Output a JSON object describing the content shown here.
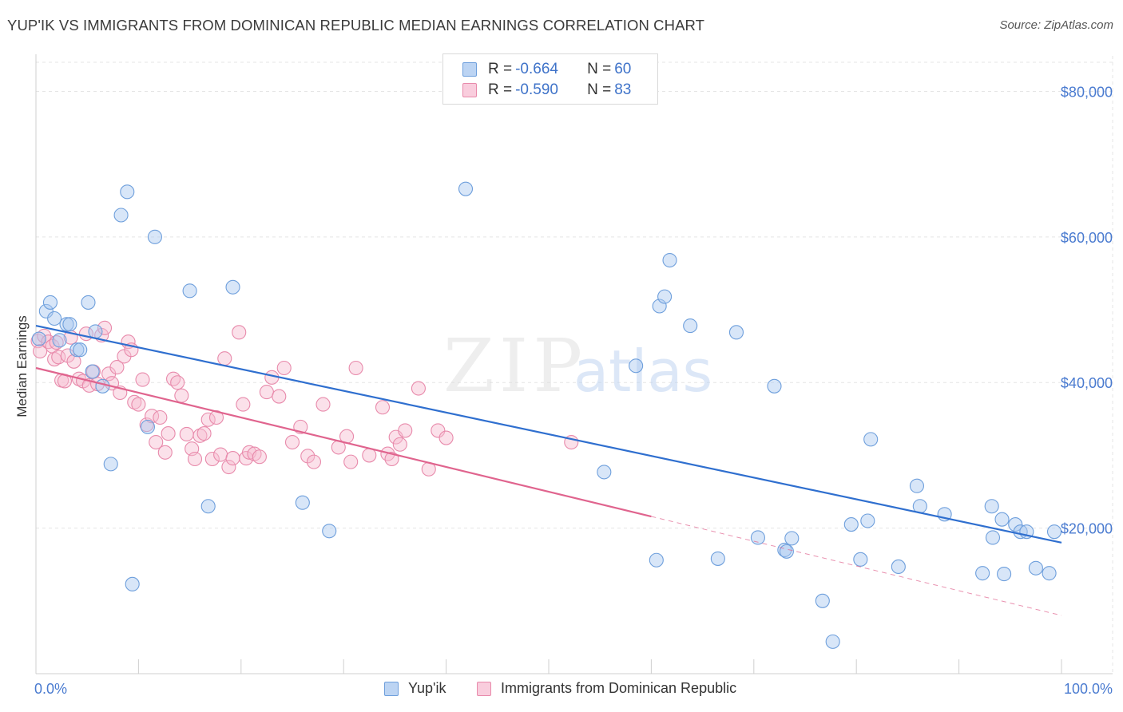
{
  "header": {
    "title": "YUP'IK VS IMMIGRANTS FROM DOMINICAN REPUBLIC MEDIAN EARNINGS CORRELATION CHART",
    "source": "Source: ZipAtlas.com"
  },
  "watermark": {
    "zip": "ZIP",
    "atlas": "atlas"
  },
  "legend": {
    "series1": {
      "r_label": "R = ",
      "r_value": "-0.664",
      "n_label": "N = ",
      "n_value": "60"
    },
    "series2": {
      "r_label": "R = ",
      "r_value": "-0.590",
      "n_label": "N = ",
      "n_value": "83"
    }
  },
  "colors": {
    "blue_fill": "#a9c8f0",
    "blue_stroke": "#6e9fdc",
    "blue_line": "#2f6fcf",
    "pink_fill": "#f7bcd0",
    "pink_stroke": "#e88aab",
    "pink_line": "#e0648e",
    "grid": "#e5e5e5",
    "tick_text": "#4a7bd0"
  },
  "chart_data": {
    "type": "scatter",
    "title": "YUP'IK VS IMMIGRANTS FROM DOMINICAN REPUBLIC MEDIAN EARNINGS CORRELATION CHART",
    "xlabel": "",
    "ylabel": "Median Earnings",
    "xlim": [
      0,
      100
    ],
    "ylim": [
      0,
      84000
    ],
    "x_tick_labels": [
      "0.0%",
      "100.0%"
    ],
    "y_ticks": [
      20000,
      40000,
      60000,
      80000
    ],
    "y_tick_labels": [
      "$20,000",
      "$40,000",
      "$60,000",
      "$80,000"
    ],
    "grid": true,
    "legend_position": "top-center",
    "series": [
      {
        "name": "Yup'ik",
        "r": -0.664,
        "n": 60,
        "trend": {
          "x": [
            0,
            100
          ],
          "y": [
            47800,
            18000
          ],
          "dashed_from": null
        },
        "points": [
          [
            0.3,
            46000
          ],
          [
            1.0,
            49800
          ],
          [
            1.4,
            51000
          ],
          [
            1.8,
            48800
          ],
          [
            2.3,
            45800
          ],
          [
            3.0,
            48000
          ],
          [
            3.3,
            48000
          ],
          [
            4.0,
            44500
          ],
          [
            4.3,
            44500
          ],
          [
            5.1,
            51000
          ],
          [
            5.5,
            41500
          ],
          [
            5.8,
            47000
          ],
          [
            6.5,
            39500
          ],
          [
            7.3,
            28800
          ],
          [
            8.3,
            63000
          ],
          [
            8.9,
            66200
          ],
          [
            9.4,
            12300
          ],
          [
            10.9,
            33900
          ],
          [
            11.6,
            60000
          ],
          [
            15.0,
            52600
          ],
          [
            16.8,
            23000
          ],
          [
            19.2,
            53100
          ],
          [
            26.0,
            23500
          ],
          [
            28.6,
            19600
          ],
          [
            41.9,
            66600
          ],
          [
            55.4,
            27700
          ],
          [
            58.5,
            42300
          ],
          [
            60.5,
            15600
          ],
          [
            60.8,
            50500
          ],
          [
            61.3,
            51800
          ],
          [
            61.8,
            56800
          ],
          [
            63.8,
            47800
          ],
          [
            66.5,
            15800
          ],
          [
            68.3,
            46900
          ],
          [
            70.4,
            18700
          ],
          [
            72.0,
            39500
          ],
          [
            73.0,
            17000
          ],
          [
            73.2,
            16800
          ],
          [
            73.7,
            18600
          ],
          [
            76.7,
            10000
          ],
          [
            77.7,
            4400
          ],
          [
            79.5,
            20500
          ],
          [
            80.4,
            15700
          ],
          [
            81.1,
            21000
          ],
          [
            81.4,
            32200
          ],
          [
            84.1,
            14700
          ],
          [
            85.9,
            25800
          ],
          [
            86.2,
            23000
          ],
          [
            88.6,
            21900
          ],
          [
            92.3,
            13800
          ],
          [
            93.2,
            23000
          ],
          [
            93.3,
            18700
          ],
          [
            94.2,
            21200
          ],
          [
            94.4,
            13700
          ],
          [
            95.5,
            20500
          ],
          [
            96.0,
            19500
          ],
          [
            96.6,
            19500
          ],
          [
            97.5,
            14500
          ],
          [
            98.8,
            13800
          ],
          [
            99.3,
            19500
          ]
        ]
      },
      {
        "name": "Immigrants from Dominican Republic",
        "r": -0.59,
        "n": 83,
        "trend": {
          "x": [
            0,
            100
          ],
          "y": [
            42000,
            8000
          ],
          "solid_until_x": 60
        },
        "points": [
          [
            0.2,
            45700
          ],
          [
            0.4,
            44300
          ],
          [
            0.8,
            46400
          ],
          [
            1.2,
            45600
          ],
          [
            1.6,
            45000
          ],
          [
            1.8,
            43200
          ],
          [
            2.0,
            45500
          ],
          [
            2.2,
            43500
          ],
          [
            2.5,
            40300
          ],
          [
            2.8,
            40200
          ],
          [
            3.1,
            43700
          ],
          [
            3.4,
            46200
          ],
          [
            3.7,
            42900
          ],
          [
            4.2,
            40500
          ],
          [
            4.6,
            40200
          ],
          [
            4.9,
            46700
          ],
          [
            5.2,
            39600
          ],
          [
            5.6,
            41500
          ],
          [
            6.0,
            39800
          ],
          [
            6.4,
            46500
          ],
          [
            6.7,
            47500
          ],
          [
            7.1,
            41200
          ],
          [
            7.4,
            39900
          ],
          [
            7.9,
            42100
          ],
          [
            8.2,
            38600
          ],
          [
            8.6,
            43600
          ],
          [
            9.0,
            45600
          ],
          [
            9.3,
            44500
          ],
          [
            9.6,
            37300
          ],
          [
            10.0,
            37000
          ],
          [
            10.4,
            40400
          ],
          [
            10.8,
            34200
          ],
          [
            11.3,
            35400
          ],
          [
            11.7,
            31800
          ],
          [
            12.1,
            35200
          ],
          [
            12.6,
            30400
          ],
          [
            12.9,
            33000
          ],
          [
            13.4,
            40500
          ],
          [
            13.8,
            40000
          ],
          [
            14.2,
            38200
          ],
          [
            14.7,
            32900
          ],
          [
            15.2,
            30900
          ],
          [
            15.5,
            29500
          ],
          [
            16.0,
            32700
          ],
          [
            16.4,
            33000
          ],
          [
            16.8,
            34900
          ],
          [
            17.2,
            29500
          ],
          [
            17.6,
            35200
          ],
          [
            18.0,
            30100
          ],
          [
            18.4,
            43300
          ],
          [
            18.8,
            28400
          ],
          [
            19.2,
            29600
          ],
          [
            19.8,
            46900
          ],
          [
            20.2,
            37000
          ],
          [
            20.5,
            29600
          ],
          [
            20.8,
            30400
          ],
          [
            21.3,
            30200
          ],
          [
            21.8,
            29800
          ],
          [
            22.5,
            38700
          ],
          [
            23.0,
            40700
          ],
          [
            23.7,
            38100
          ],
          [
            24.2,
            42000
          ],
          [
            25.0,
            31800
          ],
          [
            25.8,
            33900
          ],
          [
            26.5,
            29900
          ],
          [
            27.1,
            29100
          ],
          [
            28.0,
            37000
          ],
          [
            29.5,
            31100
          ],
          [
            30.3,
            32600
          ],
          [
            30.7,
            29100
          ],
          [
            31.2,
            42000
          ],
          [
            32.5,
            30000
          ],
          [
            33.8,
            36600
          ],
          [
            34.3,
            30200
          ],
          [
            34.7,
            29500
          ],
          [
            35.1,
            32500
          ],
          [
            35.5,
            31500
          ],
          [
            36.0,
            33400
          ],
          [
            37.3,
            39200
          ],
          [
            38.3,
            28100
          ],
          [
            39.2,
            33400
          ],
          [
            40.0,
            32400
          ],
          [
            52.2,
            31800
          ]
        ]
      }
    ]
  },
  "bottom_legend": {
    "item1": "Yup'ik",
    "item2": "Immigrants from Dominican Republic"
  }
}
